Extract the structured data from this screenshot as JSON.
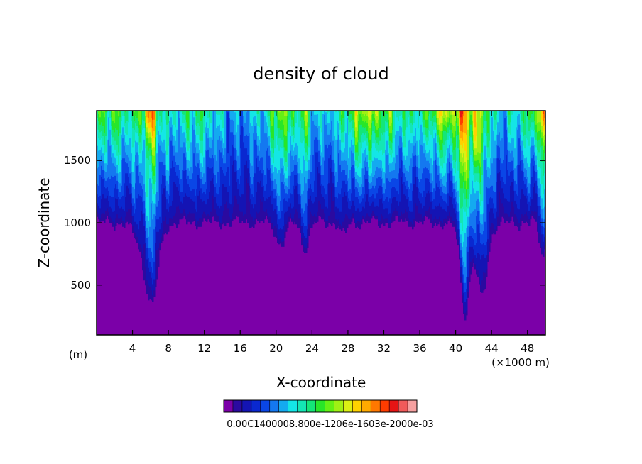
{
  "chart_data": {
    "type": "heatmap",
    "title": "density of cloud",
    "xlabel": "X-coordinate",
    "ylabel": "Z-coordinate",
    "x_unit_note": "(×1000 m)",
    "y_unit_note": "(m)",
    "xlim": [
      0,
      50
    ],
    "ylim": [
      100,
      1900
    ],
    "x_ticks": [
      4,
      8,
      12,
      16,
      20,
      24,
      28,
      32,
      36,
      40,
      44,
      48
    ],
    "y_ticks": [
      500,
      1000,
      1500
    ],
    "colorbar_label": "0.00C1400008.800e-1206e-1603e-2000e-03",
    "colorbar_colors": [
      "#7b00a8",
      "#2a0aa0",
      "#1414b4",
      "#0a28d0",
      "#0a46e6",
      "#1478f0",
      "#14aaf0",
      "#14e6e6",
      "#14e6b4",
      "#14e678",
      "#28e628",
      "#64f014",
      "#a0f014",
      "#dcf014",
      "#ffd200",
      "#ffaa00",
      "#ff7800",
      "#ff3c00",
      "#e61414",
      "#f05a5a",
      "#f5a0a0"
    ],
    "data_summary": {
      "cloud_base_m": 1000,
      "high_density_regions_x_km": [
        5,
        7,
        42,
        49
      ],
      "deep_penetration_x_km": [
        6,
        20,
        23,
        41,
        43
      ]
    }
  }
}
